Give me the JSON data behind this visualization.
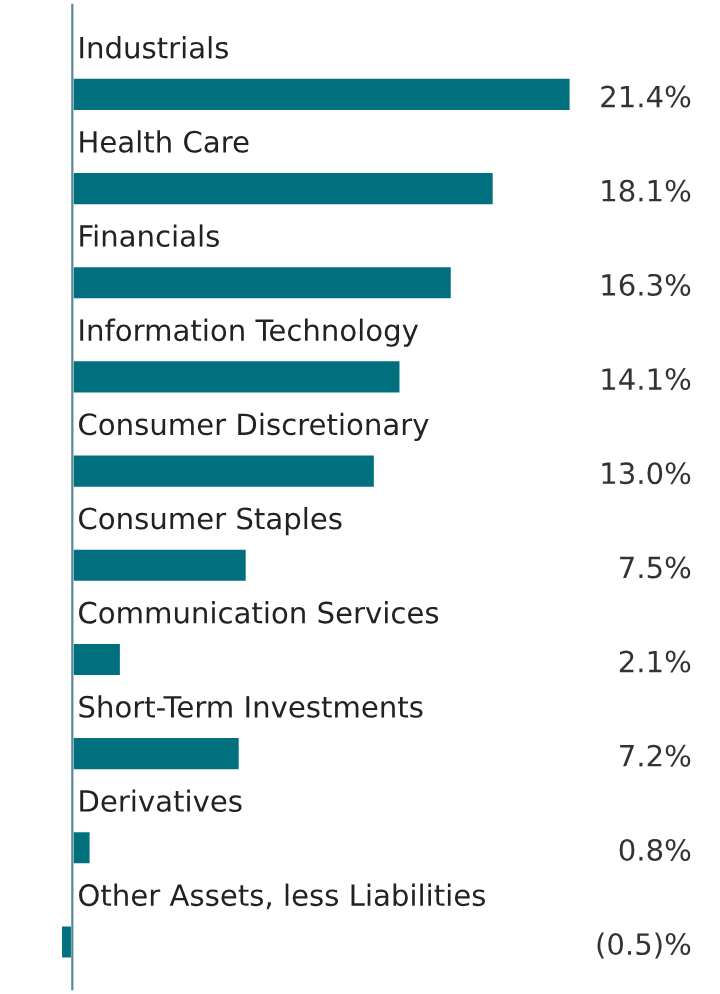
{
  "chart_data": {
    "type": "bar",
    "orientation": "horizontal",
    "categories": [
      "Industrials",
      "Health Care",
      "Financials",
      "Information Technology",
      "Consumer Discretionary",
      "Consumer Staples",
      "Communication Services",
      "Short-Term Investments",
      "Derivatives",
      "Other Assets, less Liabilities"
    ],
    "values": [
      21.4,
      18.1,
      16.3,
      14.1,
      13.0,
      7.5,
      2.1,
      7.2,
      0.8,
      -0.5
    ],
    "value_labels": [
      "21.4%",
      "18.1%",
      "16.3%",
      "14.1%",
      "13.0%",
      "7.5%",
      "2.1%",
      "7.2%",
      "0.8%",
      "(0.5)%"
    ],
    "color": "#00707f"
  }
}
